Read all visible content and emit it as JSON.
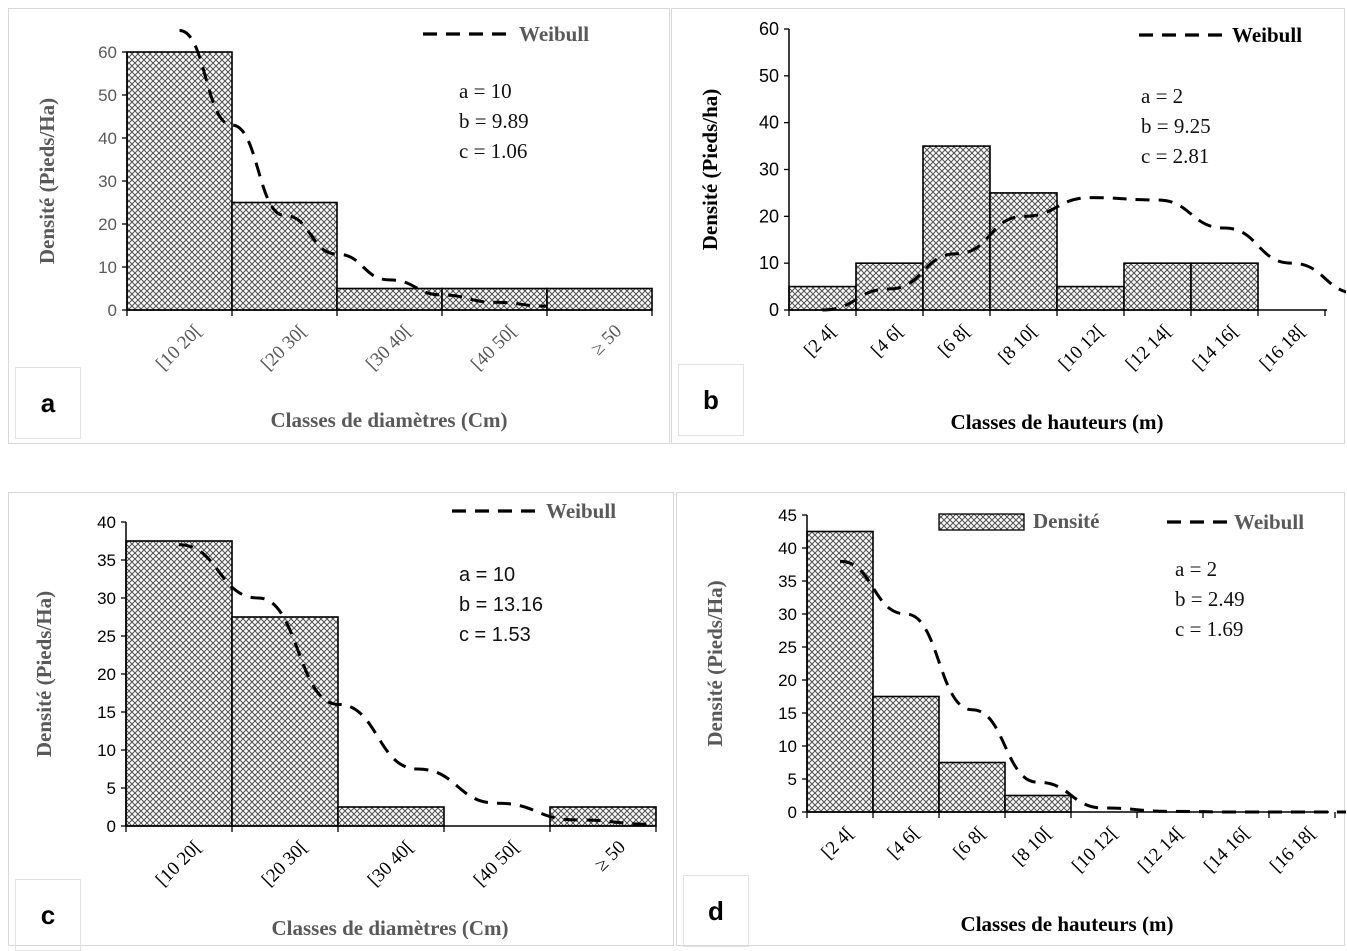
{
  "colors": {
    "hatch": "#555555",
    "axis": "#000000",
    "grey_text": "#595959"
  },
  "chart_data": [
    {
      "id": "a",
      "type": "bar",
      "panel_label": "a",
      "categories": [
        "[10 20[",
        "[20 30[",
        "[30 40[",
        "[40 50[",
        "≥ 50"
      ],
      "values": [
        60,
        25,
        5,
        5,
        5
      ],
      "curve": {
        "name": "Weibull",
        "y": [
          65,
          43,
          22,
          13,
          7,
          3.5,
          1.8,
          0.9
        ]
      },
      "params": [
        "a = 10",
        "b = 9.89",
        "c = 1.06"
      ],
      "xlabel": "Classes de diamètres (Cm)",
      "ylabel": "Densité (Pieds/Ha)",
      "ylim": [
        0,
        60
      ],
      "yticks": [
        0,
        10,
        20,
        30,
        40,
        50,
        60
      ],
      "legend": [
        "Weibull"
      ]
    },
    {
      "id": "b",
      "type": "bar",
      "panel_label": "b",
      "categories": [
        "[2 4[",
        "[4 6[",
        "[6 8[",
        "[8 10[",
        "[10 12[",
        "[12 14[",
        "[14 16[",
        "[16 18["
      ],
      "values": [
        5,
        10,
        35,
        25,
        5,
        10,
        10,
        null
      ],
      "curve": {
        "name": "Weibull",
        "y": [
          0,
          4.5,
          12,
          20,
          24,
          23.5,
          17.5,
          10,
          3.5
        ]
      },
      "params": [
        "a = 2",
        "b = 9.25",
        "c = 2.81"
      ],
      "xlabel": "Classes de hauteurs (m)",
      "ylabel": "Densité (Pieds/ha)",
      "ylim": [
        0,
        60
      ],
      "yticks": [
        0,
        10,
        20,
        30,
        40,
        50,
        60
      ],
      "legend": [
        "Weibull"
      ]
    },
    {
      "id": "c",
      "type": "bar",
      "panel_label": "c",
      "categories": [
        "[10 20[",
        "[20 30[",
        "[30 40[",
        "[40 50[",
        "≥ 50"
      ],
      "values": [
        37.5,
        27.5,
        2.5,
        0,
        2.5
      ],
      "curve": {
        "name": "Weibull",
        "y": [
          37,
          30,
          16,
          7.5,
          3,
          0.8,
          0.2
        ]
      },
      "params": [
        "a = 10",
        "b = 13.16",
        "c = 1.53"
      ],
      "xlabel": "Classes de diamètres (Cm)",
      "ylabel": "Densité (Pieds/Ha)",
      "ylim": [
        0,
        40
      ],
      "yticks": [
        0,
        5,
        10,
        15,
        20,
        25,
        30,
        35,
        40
      ],
      "legend": [
        "Weibull"
      ]
    },
    {
      "id": "d",
      "type": "bar",
      "panel_label": "d",
      "categories": [
        "[2 4[",
        "[4 6[",
        "[6 8[",
        "[8 10[",
        "[10 12[",
        "[12 14[",
        "[14 16[",
        "[16 18["
      ],
      "values": [
        42.5,
        17.5,
        7.5,
        2.5,
        0,
        0,
        0,
        0
      ],
      "curve": {
        "name": "Weibull",
        "y": [
          38,
          30,
          15.5,
          4.5,
          0.6,
          0.1,
          0,
          0,
          0
        ]
      },
      "params": [
        "a = 2",
        "b = 2.49",
        "c = 1.69"
      ],
      "xlabel": "Classes de hauteurs (m)",
      "ylabel": "Densité (Pieds/Ha)",
      "ylim": [
        0,
        45
      ],
      "yticks": [
        0,
        5,
        10,
        15,
        20,
        25,
        30,
        35,
        40,
        45
      ],
      "legend": [
        "Densité",
        "Weibull"
      ]
    }
  ]
}
